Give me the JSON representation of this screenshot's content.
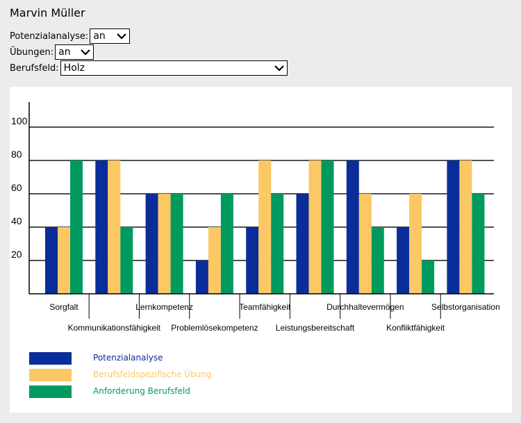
{
  "user": {
    "name": "Marvin Müller"
  },
  "filters": {
    "potenzialanalyse": {
      "label": "Potenzialanalyse:",
      "value": "an"
    },
    "uebungen": {
      "label": "Übungen:",
      "value": "an"
    },
    "berufsfeld": {
      "label": "Berufsfeld:",
      "value": "Holz"
    }
  },
  "chart_data": {
    "type": "bar",
    "categories": [
      "Sorgfalt",
      "Kommunikationsfähigkeit",
      "Lernkompetenz",
      "Problemlösekompetenz",
      "Teamfähigkeit",
      "Leistungsbereitschaft",
      "Durchhaltevermögen",
      "Konfliktfähigkeit",
      "Selbstorganisation"
    ],
    "series": [
      {
        "name": "Potenzialanalyse",
        "color": "#0a2d9a",
        "values": [
          40,
          80,
          60,
          20,
          40,
          60,
          80,
          40,
          80
        ]
      },
      {
        "name": "Berufsfeldspezifische Übung",
        "color": "#fcc864",
        "values": [
          40,
          80,
          60,
          40,
          80,
          80,
          60,
          60,
          80
        ]
      },
      {
        "name": "Anforderung Berufsfeld",
        "color": "#009a5e",
        "values": [
          80,
          40,
          60,
          60,
          60,
          80,
          40,
          20,
          60
        ]
      }
    ],
    "yticks": [
      20,
      40,
      60,
      80,
      100
    ],
    "ylim": [
      0,
      115
    ],
    "grid": true,
    "legend_position": "bottom-left"
  }
}
